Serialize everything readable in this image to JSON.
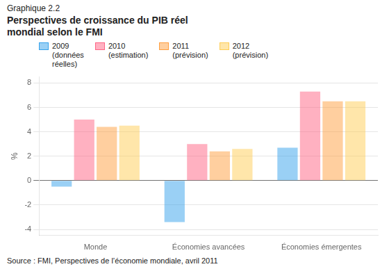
{
  "chart_data": {
    "type": "bar",
    "subtitle": "Graphique 2.2",
    "title": "Perspectives de croissance du PIB réel\nmondial selon le FMI",
    "ylabel": "%",
    "categories": [
      "Monde",
      "Économies avancées",
      "Économies émergentes"
    ],
    "series": [
      {
        "name": "2009\n(données\nréelles)",
        "values": [
          -0.5,
          -3.4,
          2.7
        ]
      },
      {
        "name": "2010\n(estimation)",
        "values": [
          5.0,
          3.0,
          7.3
        ]
      },
      {
        "name": "2011\n(prévision)",
        "values": [
          4.4,
          2.4,
          6.5
        ]
      },
      {
        "name": "2012\n(prévision)",
        "values": [
          4.5,
          2.6,
          6.5
        ]
      }
    ],
    "ylim": [
      -4.5,
      8.5
    ],
    "yticks": [
      -4,
      -2,
      0,
      2,
      4,
      6,
      8
    ],
    "grid": true,
    "legend": "top",
    "annotations": [
      "Source : FMI, Perspectives de l’économie mondiale, avril 2011"
    ]
  }
}
